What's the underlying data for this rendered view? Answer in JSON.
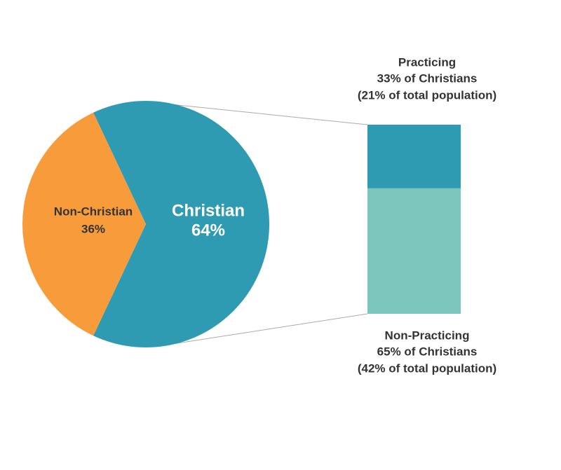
{
  "chart_data": [
    {
      "type": "pie",
      "categories": [
        "Christian",
        "Non-Christian"
      ],
      "values": [
        64,
        36
      ],
      "value_labels": [
        "64%",
        "36%"
      ],
      "colors": [
        "#2f9bb2",
        "#f89c3b"
      ]
    },
    {
      "type": "stacked_bar",
      "series": [
        {
          "name": "Practicing",
          "color": "#2f9bb2",
          "values": [
            33
          ],
          "value_labels": [
            "33% of Christians"
          ],
          "total_values": [
            21
          ],
          "total_labels": [
            "(21% of total population)"
          ]
        },
        {
          "name": "Non-Practicing",
          "color": "#7cc6bd",
          "values": [
            65
          ],
          "value_labels": [
            "65% of Christians"
          ],
          "total_values": [
            42
          ],
          "total_labels": [
            "(42% of total population)"
          ]
        }
      ]
    }
  ]
}
